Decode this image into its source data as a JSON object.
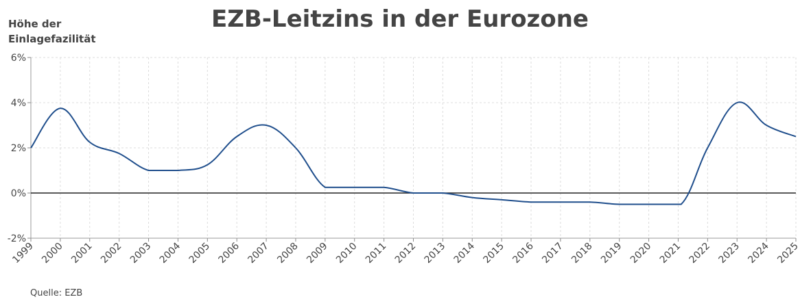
{
  "chart_data": {
    "type": "line",
    "title": "EZB-Leitzins in der Eurozone",
    "ylabel_lines": [
      "Höhe der",
      "Einlagefazilität"
    ],
    "xlabel": "",
    "source": "Quelle: EZB",
    "ylim": [
      -2,
      6
    ],
    "xlim": [
      1999,
      2025
    ],
    "y_ticks": [
      -2,
      0,
      2,
      4,
      6
    ],
    "y_tick_labels": [
      "-2%",
      "0%",
      "2%",
      "4%",
      "6%"
    ],
    "x_ticks": [
      1999,
      2000,
      2001,
      2002,
      2003,
      2004,
      2005,
      2006,
      2007,
      2008,
      2009,
      2010,
      2011,
      2012,
      2013,
      2014,
      2015,
      2016,
      2017,
      2018,
      2019,
      2020,
      2021,
      2022,
      2023,
      2024,
      2025
    ],
    "grid": true,
    "series": [
      {
        "name": "Einlagefazilität",
        "color": "#1f4e8c",
        "x": [
          1999,
          2000,
          2001,
          2002,
          2003,
          2004,
          2005,
          2006,
          2007,
          2008,
          2009,
          2010,
          2011,
          2012,
          2013,
          2014,
          2015,
          2016,
          2017,
          2018,
          2019,
          2020,
          2021.1,
          2022,
          2023,
          2024,
          2025
        ],
        "values": [
          2.0,
          3.75,
          2.25,
          1.75,
          1.0,
          1.0,
          1.25,
          2.5,
          3.0,
          2.0,
          0.25,
          0.25,
          0.25,
          0.0,
          0.0,
          -0.2,
          -0.3,
          -0.4,
          -0.4,
          -0.4,
          -0.5,
          -0.5,
          -0.5,
          2.0,
          4.0,
          3.0,
          2.5
        ]
      }
    ]
  }
}
